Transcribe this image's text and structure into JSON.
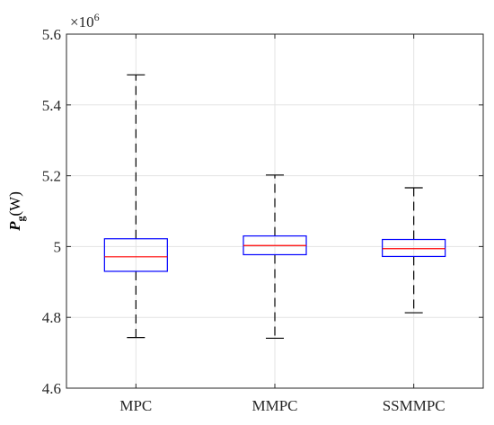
{
  "chart_data": {
    "type": "box",
    "categories": [
      "MPC",
      "MMPC",
      "SSMMPC"
    ],
    "boxes": [
      {
        "category": "MPC",
        "whisker_low": 4.743,
        "q1": 4.93,
        "median": 4.971,
        "q3": 5.022,
        "whisker_high": 5.485
      },
      {
        "category": "MMPC",
        "whisker_low": 4.741,
        "q1": 4.977,
        "median": 5.003,
        "q3": 5.03,
        "whisker_high": 5.202
      },
      {
        "category": "SSMMPC",
        "whisker_low": 4.813,
        "q1": 4.972,
        "median": 4.994,
        "q3": 5.02,
        "whisker_high": 5.166
      }
    ],
    "ylim": [
      4.6,
      5.6
    ],
    "yticks": [
      4.6,
      4.8,
      5,
      5.2,
      5.4,
      5.6
    ],
    "ytick_labels": [
      "4.6",
      "4.8",
      "5",
      "5.2",
      "5.4",
      "5.6"
    ],
    "y_exponent": {
      "base": "×10",
      "power": "6"
    },
    "ylabel": {
      "main": "P",
      "subscript": "g",
      "unit": "(W)"
    },
    "xlabel": "",
    "title": "",
    "grid": true,
    "colors": {
      "box": "#0000ff",
      "median": "#ff0000",
      "whisker": "#000000",
      "grid": "#e3e3e3",
      "axis": "#262626"
    }
  }
}
